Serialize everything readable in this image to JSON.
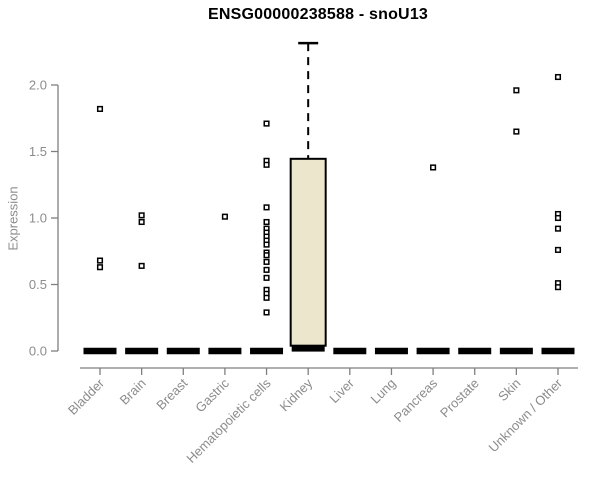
{
  "page": {
    "background": "#ffffff"
  },
  "chart_data": {
    "type": "boxplot",
    "title": "ENSG00000238588 - snoU13",
    "ylabel": "Expression",
    "xlabel": "",
    "ylim": [
      0,
      2.35
    ],
    "yticks": [
      "0.0",
      "0.5",
      "1.0",
      "1.5",
      "2.0"
    ],
    "ytick_values": [
      0,
      0.5,
      1.0,
      1.5,
      2.0
    ],
    "grid": false,
    "legend": "none",
    "colors": {
      "box_fill": "#ECE7CC",
      "box_stroke": "#000000",
      "axis_line": "#7F7F7F",
      "tick_label": "#8C8C8C",
      "title": "#000000"
    },
    "categories": [
      "Bladder",
      "Brain",
      "Breast",
      "Gastric",
      "Hematopoietic cells",
      "Kidney",
      "Liver",
      "Lung",
      "Pancreas",
      "Prostate",
      "Skin",
      "Unknown / Other"
    ],
    "series": [
      {
        "name": "Bladder",
        "median": 0,
        "q1": 0,
        "q3": 0,
        "whisker_low": 0,
        "whisker_high": 0,
        "outliers": [
          1.82,
          0.68,
          0.63
        ]
      },
      {
        "name": "Brain",
        "median": 0,
        "q1": 0,
        "q3": 0,
        "whisker_low": 0,
        "whisker_high": 0,
        "outliers": [
          1.02,
          0.97,
          0.64
        ]
      },
      {
        "name": "Breast",
        "median": 0,
        "q1": 0,
        "q3": 0,
        "whisker_low": 0,
        "whisker_high": 0,
        "outliers": []
      },
      {
        "name": "Gastric",
        "median": 0,
        "q1": 0,
        "q3": 0,
        "whisker_low": 0,
        "whisker_high": 0,
        "outliers": [
          1.01
        ]
      },
      {
        "name": "Hematopoietic cells",
        "median": 0,
        "q1": 0,
        "q3": 0,
        "whisker_low": 0,
        "whisker_high": 0,
        "outliers": [
          1.71,
          1.43,
          1.4,
          1.08,
          0.97,
          0.92,
          0.89,
          0.86,
          0.83,
          0.8,
          0.74,
          0.72,
          0.67,
          0.61,
          0.55,
          0.46,
          0.43,
          0.4,
          0.29
        ]
      },
      {
        "name": "Kidney",
        "median": 0.02,
        "q1": 0.04,
        "q3": 1.445,
        "whisker_low": 0,
        "whisker_high": 2.315,
        "outliers": []
      },
      {
        "name": "Liver",
        "median": 0,
        "q1": 0,
        "q3": 0,
        "whisker_low": 0,
        "whisker_high": 0,
        "outliers": []
      },
      {
        "name": "Lung",
        "median": 0,
        "q1": 0,
        "q3": 0,
        "whisker_low": 0,
        "whisker_high": 0,
        "outliers": []
      },
      {
        "name": "Pancreas",
        "median": 0,
        "q1": 0,
        "q3": 0,
        "whisker_low": 0,
        "whisker_high": 0,
        "outliers": [
          1.38
        ]
      },
      {
        "name": "Prostate",
        "median": 0,
        "q1": 0,
        "q3": 0,
        "whisker_low": 0,
        "whisker_high": 0,
        "outliers": []
      },
      {
        "name": "Skin",
        "median": 0,
        "q1": 0,
        "q3": 0,
        "whisker_low": 0,
        "whisker_high": 0,
        "outliers": [
          1.96,
          1.65
        ]
      },
      {
        "name": "Unknown / Other",
        "median": 0,
        "q1": 0,
        "q3": 0,
        "whisker_low": 0,
        "whisker_high": 0,
        "outliers": [
          2.06,
          1.03,
          1.0,
          0.92,
          0.76,
          0.51,
          0.48
        ]
      }
    ]
  }
}
